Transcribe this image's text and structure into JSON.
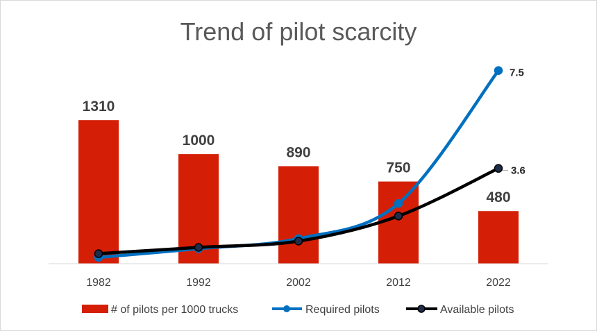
{
  "chart_data": {
    "type": "bar",
    "title": "Trend of pilot scarcity",
    "categories": [
      "1982",
      "1992",
      "2002",
      "2012",
      "2022"
    ],
    "bar_series": {
      "name": "# of pilots per 1000 trucks",
      "values": [
        1310,
        1000,
        890,
        750,
        480
      ],
      "labels": [
        "1310",
        "1000",
        "890",
        "750",
        "480"
      ],
      "color": "#d41f06"
    },
    "bar_ylim": [
      0,
      1900
    ],
    "line_series": [
      {
        "name": "Required pilots",
        "values": [
          0.05,
          0.4,
          0.8,
          2.2,
          7.5
        ],
        "color": "#0070c0",
        "end_label": "7.5"
      },
      {
        "name": "Available pilots",
        "values": [
          0.2,
          0.45,
          0.7,
          1.7,
          3.6
        ],
        "color": "#000000",
        "end_label": "3.6"
      }
    ],
    "line_ylim": [
      -0.2,
      8.1
    ],
    "xlabel": "",
    "ylabel": "",
    "grid": false,
    "legend": "bottom"
  }
}
